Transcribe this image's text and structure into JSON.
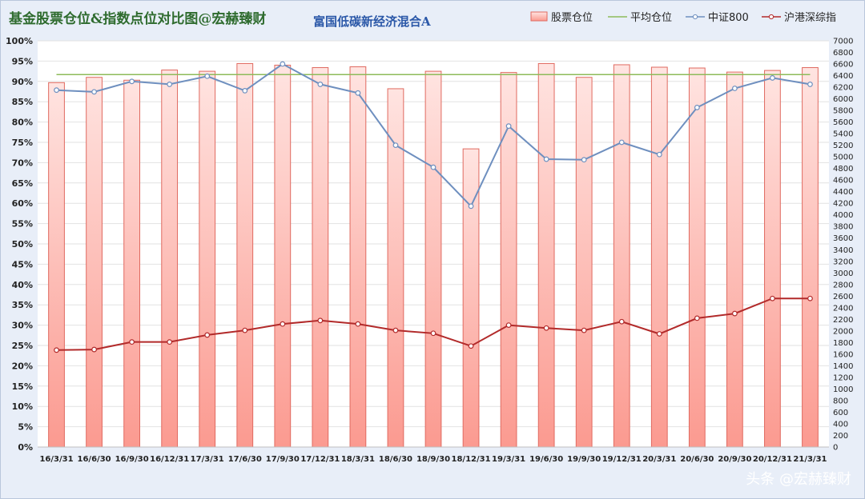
{
  "chart_data": {
    "type": "bar",
    "title": "基金股票仓位&指数点位对比图@宏赫臻财",
    "subtitle": "富国低碳新经济混合A",
    "categories": [
      "16/3/31",
      "16/6/30",
      "16/9/30",
      "16/12/31",
      "17/3/31",
      "17/6/30",
      "17/9/30",
      "17/12/31",
      "18/3/31",
      "18/6/30",
      "18/9/30",
      "18/12/31",
      "19/3/31",
      "19/6/30",
      "19/9/30",
      "19/12/31",
      "20/3/31",
      "20/6/30",
      "20/9/30",
      "20/12/31",
      "21/3/31"
    ],
    "series": [
      {
        "name": "股票仓位",
        "type": "bar",
        "axis": "left",
        "color": "#f4b8b0",
        "values": [
          89.7,
          91.0,
          90.3,
          92.8,
          92.5,
          94.4,
          94.0,
          93.4,
          93.6,
          88.2,
          92.5,
          73.4,
          92.2,
          94.4,
          91.0,
          94.1,
          93.5,
          93.3,
          92.3,
          92.7,
          93.4
        ]
      },
      {
        "name": "平均仓位",
        "type": "line",
        "axis": "left",
        "color": "#8dbb5a",
        "values": [
          91.7,
          91.7,
          91.7,
          91.7,
          91.7,
          91.7,
          91.7,
          91.7,
          91.7,
          91.7,
          91.7,
          91.7,
          91.7,
          91.7,
          91.7,
          91.7,
          91.7,
          91.7,
          91.7,
          91.7,
          91.7
        ]
      },
      {
        "name": "中证800",
        "type": "line",
        "axis": "right",
        "color": "#6e8fbf",
        "values": [
          6150,
          6120,
          6300,
          6250,
          6390,
          6140,
          6600,
          6250,
          6100,
          5200,
          4820,
          4150,
          5530,
          4960,
          4950,
          5250,
          5040,
          5850,
          6180,
          6360,
          6250
        ]
      },
      {
        "name": "沪港深综指",
        "type": "line",
        "axis": "right",
        "color": "#b22a2a",
        "values": [
          1670,
          1680,
          1810,
          1810,
          1930,
          2010,
          2120,
          2180,
          2120,
          2010,
          1960,
          1740,
          2100,
          2050,
          2010,
          2160,
          1950,
          2220,
          2300,
          2560,
          2560
        ]
      }
    ],
    "y_left": {
      "min": 0,
      "max": 100,
      "step": 5,
      "unit": "%"
    },
    "y_right": {
      "min": 0,
      "max": 7000,
      "step": 200
    },
    "grid": true,
    "legend_placement": "top-right"
  },
  "legend": [
    {
      "label": "股票仓位",
      "swatch": "bar",
      "color": "#f4b8b0"
    },
    {
      "label": "平均仓位",
      "swatch": "line",
      "color": "#8dbb5a"
    },
    {
      "label": "中证800",
      "swatch": "line-marker",
      "color": "#6e8fbf"
    },
    {
      "label": "沪港深综指",
      "swatch": "line-marker",
      "color": "#b22a2a"
    }
  ],
  "watermark": "头条 @宏赫臻财"
}
